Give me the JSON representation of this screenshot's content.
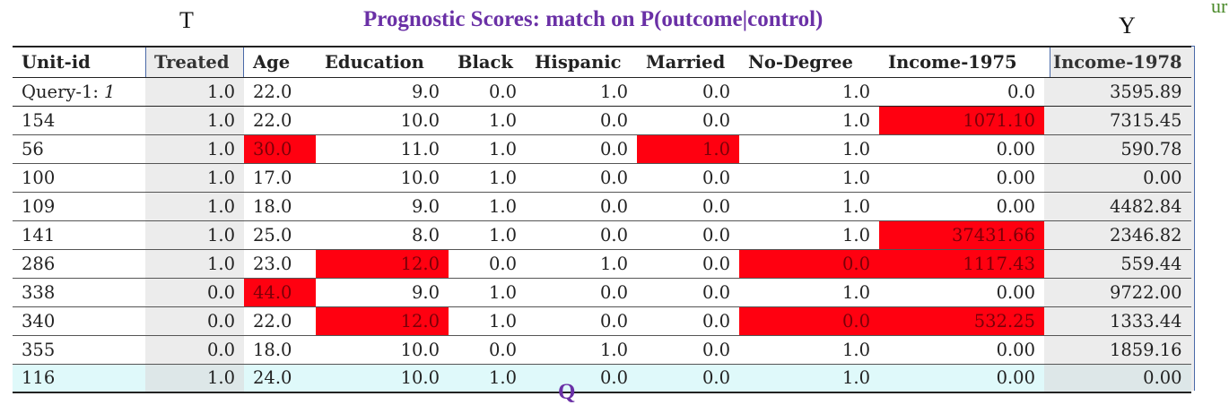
{
  "labels": {
    "treatment_marker": "T",
    "outcome_marker": "Y",
    "corner_fragment": "ur",
    "title": "Prognostic Scores: match on P(outcome|control)",
    "bottom_fragment": "Q"
  },
  "colors": {
    "highlight": "#ff0010",
    "title_purple": "#6a30a6",
    "column_shade": "#ececec",
    "column_border": "#4a69a8",
    "last_row_bg": "#dff9fa"
  },
  "table": {
    "headers": [
      "Unit-id",
      "Treated",
      "Age",
      "Education",
      "Black",
      "Hispanic",
      "Married",
      "No-Degree",
      "Income-1975",
      "Income-1978"
    ],
    "rows": [
      {
        "id": "Query-1:",
        "id_suffix": "1",
        "cells": [
          "1.0",
          "22.0",
          "9.0",
          "0.0",
          "1.0",
          "0.0",
          "1.0",
          "0.0",
          "3595.89"
        ],
        "highlight": []
      },
      {
        "id": "154",
        "cells": [
          "1.0",
          "22.0",
          "10.0",
          "1.0",
          "0.0",
          "0.0",
          "1.0",
          "1071.10",
          "7315.45"
        ],
        "highlight": [
          7
        ]
      },
      {
        "id": "56",
        "cells": [
          "1.0",
          "30.0",
          "11.0",
          "1.0",
          "0.0",
          "1.0",
          "1.0",
          "0.00",
          "590.78"
        ],
        "highlight": [
          1,
          5
        ]
      },
      {
        "id": "100",
        "cells": [
          "1.0",
          "17.0",
          "10.0",
          "1.0",
          "0.0",
          "0.0",
          "1.0",
          "0.00",
          "0.00"
        ],
        "highlight": []
      },
      {
        "id": "109",
        "cells": [
          "1.0",
          "18.0",
          "9.0",
          "1.0",
          "0.0",
          "0.0",
          "1.0",
          "0.00",
          "4482.84"
        ],
        "highlight": []
      },
      {
        "id": "141",
        "cells": [
          "1.0",
          "25.0",
          "8.0",
          "1.0",
          "0.0",
          "0.0",
          "1.0",
          "37431.66",
          "2346.82"
        ],
        "highlight": [
          7
        ]
      },
      {
        "id": "286",
        "cells": [
          "1.0",
          "23.0",
          "12.0",
          "0.0",
          "1.0",
          "0.0",
          "0.0",
          "1117.43",
          "559.44"
        ],
        "highlight": [
          2,
          6,
          7
        ]
      },
      {
        "id": "338",
        "cells": [
          "0.0",
          "44.0",
          "9.0",
          "1.0",
          "0.0",
          "0.0",
          "1.0",
          "0.00",
          "9722.00"
        ],
        "highlight": [
          1
        ]
      },
      {
        "id": "340",
        "cells": [
          "0.0",
          "22.0",
          "12.0",
          "1.0",
          "0.0",
          "0.0",
          "0.0",
          "532.25",
          "1333.44"
        ],
        "highlight": [
          2,
          6,
          7
        ]
      },
      {
        "id": "355",
        "cells": [
          "0.0",
          "18.0",
          "10.0",
          "0.0",
          "1.0",
          "0.0",
          "1.0",
          "0.00",
          "1859.16"
        ],
        "highlight": []
      },
      {
        "id": "116",
        "cells": [
          "1.0",
          "24.0",
          "10.0",
          "1.0",
          "0.0",
          "0.0",
          "1.0",
          "0.00",
          "0.00"
        ],
        "highlight": []
      }
    ]
  }
}
